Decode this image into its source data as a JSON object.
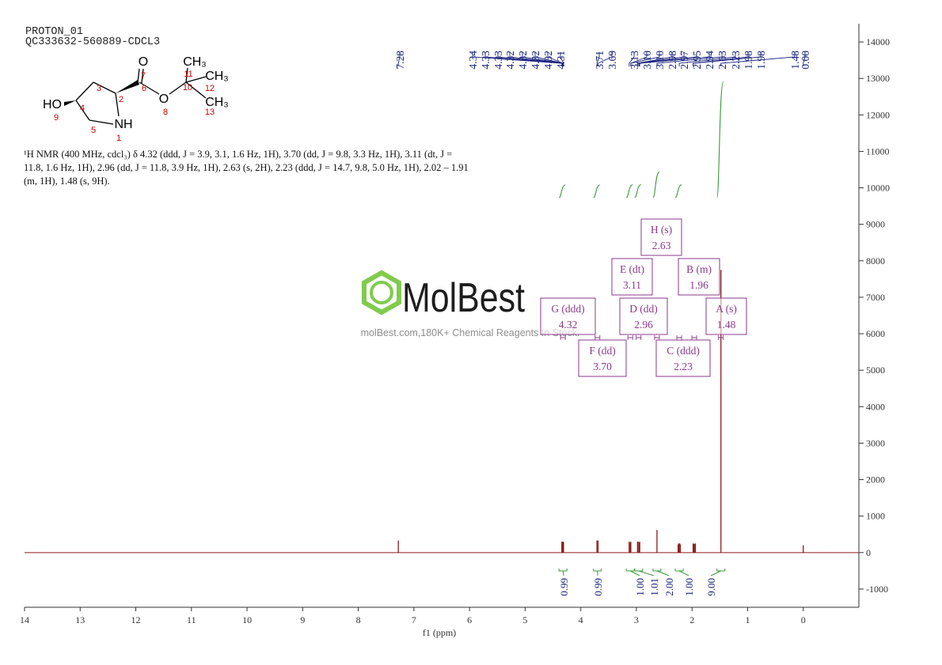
{
  "chart_data": {
    "type": "nmr",
    "title": "PROTON_01",
    "subtitle": "QC333632-560889-CDCL3",
    "xlabel": "f1 (ppm)",
    "xlim": [
      14,
      -1
    ],
    "xticks": [
      14,
      13,
      12,
      11,
      10,
      9,
      8,
      7,
      6,
      5,
      4,
      3,
      2,
      1,
      0
    ],
    "ylim": [
      -1500,
      14500
    ],
    "yticks": [
      -1000,
      0,
      1000,
      2000,
      3000,
      4000,
      5000,
      6000,
      7000,
      8000,
      9000,
      10000,
      11000,
      12000,
      13000,
      14000
    ],
    "color": "#8b1a1a",
    "peak_labels": [
      7.28,
      4.34,
      4.33,
      4.33,
      4.32,
      4.32,
      4.32,
      4.32,
      4.31,
      3.71,
      3.69,
      3.13,
      {
        "value": 3.1,
        "label": "3.10"
      },
      {
        "value": 3.1,
        "label": "3.10"
      },
      2.98,
      2.97,
      2.95,
      2.94,
      2.63,
      2.23,
      1.98,
      1.98,
      1.48,
      {
        "value": 0,
        "label": "0.00"
      }
    ],
    "spectrum": {
      "x": [
        7.28,
        4.34,
        4.33,
        4.32,
        4.31,
        3.71,
        3.69,
        3.13,
        3.11,
        3.1,
        2.98,
        2.97,
        2.95,
        2.94,
        2.63,
        2.25,
        2.24,
        2.22,
        2.21,
        1.98,
        1.97,
        1.95,
        1.94,
        1.48,
        0
      ],
      "values": [
        330,
        300,
        280,
        300,
        280,
        330,
        330,
        300,
        270,
        300,
        300,
        300,
        280,
        300,
        620,
        220,
        250,
        250,
        220,
        250,
        240,
        240,
        250,
        7750,
        200
      ]
    },
    "integrals": {
      "x": [
        4.32,
        3.7,
        3.11,
        2.96,
        2.63,
        2.23,
        1.48
      ],
      "values": [
        0.99,
        0.99,
        1,
        1.01,
        2,
        1,
        9
      ],
      "value_labels": [
        "0.99",
        "0.99",
        "1.00",
        "1.01",
        "2.00",
        "1.00",
        "9.00"
      ]
    },
    "multiplets": [
      {
        "name": "G (ddd)",
        "shift": 4.32
      },
      {
        "name": "F (dd)",
        "shift": {
          "value": 3.7,
          "label": "3.70"
        }
      },
      {
        "name": "E (dt)",
        "shift": 3.11
      },
      {
        "name": "D (dd)",
        "shift": 2.96
      },
      {
        "name": "H (s)",
        "shift": 2.63
      },
      {
        "name": "C (ddd)",
        "shift": 2.23
      },
      {
        "name": "B (m)",
        "shift": 1.96
      },
      {
        "name": "A (s)",
        "shift": 1.48
      }
    ]
  },
  "molecule": {
    "atoms": [
      "O",
      "7",
      "CH₃",
      "11",
      "10",
      "CH₃",
      "12",
      "6",
      "3",
      "2",
      "O",
      "HO",
      "4",
      "CH₃",
      "13",
      "8",
      "9",
      "5",
      "NH",
      "1"
    ]
  },
  "description": "¹H NMR (400 MHz, cdcl₃) δ 4.32 (ddd, J = 3.9, 3.1, 1.6 Hz, 1H), 3.70 (dd, J = 9.8, 3.3 Hz, 1H), 3.11 (dt, J = 11.8, 1.6 Hz, 1H), 2.96 (dd, J = 11.8, 3.9 Hz, 1H), 2.63 (s, 2H), 2.23 (ddd, J = 14.7, 9.8, 5.0 Hz, 1H), 2.02 – 1.91 (m, 1H), 1.48 (s, 9H).",
  "watermark": {
    "logo": "MolBest",
    "tagline": "molBest.com,180K+ Chemical Reagents In Stock."
  }
}
